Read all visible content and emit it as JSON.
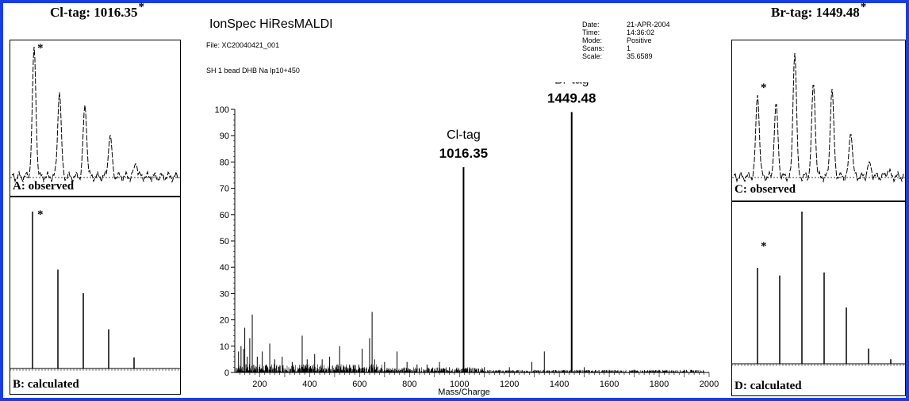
{
  "left": {
    "title": "Cl-tag: 1016.35",
    "star": "*",
    "observed_label": "A: observed",
    "calculated_label": "B: calculated"
  },
  "right": {
    "title": "Br-tag: 1449.48",
    "star": "*",
    "observed_label": "C: observed",
    "calculated_label": "D: calculated"
  },
  "center": {
    "instrument": "IonSpec HiResMALDI",
    "file": "File: XC20040421_001",
    "sample": "SH 1 bead DHB Na lp10+450",
    "meta": [
      {
        "key": "Date:",
        "value": "21-APR-2004"
      },
      {
        "key": "Time:",
        "value": "14:36:02"
      },
      {
        "key": "Mode:",
        "value": "Positive"
      },
      {
        "key": "Scans:",
        "value": "1"
      },
      {
        "key": "Scale:",
        "value": "35.6589"
      }
    ]
  },
  "chart_data": [
    {
      "type": "line",
      "name": "main-spectrum",
      "xlabel": "Mass/Charge",
      "ylabel": "",
      "xlim": [
        100,
        2000
      ],
      "ylim": [
        0,
        100
      ],
      "x_ticks": [
        "200",
        "400",
        "600",
        "800",
        "1000",
        "1200",
        "1400",
        "1600",
        "1800",
        "2000"
      ],
      "y_ticks": [
        "0",
        "10",
        "20",
        "30",
        "40",
        "50",
        "60",
        "70",
        "80",
        "90",
        "100"
      ],
      "peaks_x": [
        115,
        125,
        135,
        140,
        150,
        160,
        170,
        190,
        210,
        240,
        260,
        290,
        330,
        370,
        390,
        420,
        450,
        480,
        520,
        560,
        610,
        640,
        650,
        660,
        700,
        750,
        790,
        830,
        870,
        920,
        960,
        1016.35,
        1100,
        1200,
        1290,
        1340,
        1449.48,
        1500,
        1600,
        1700,
        1800,
        1900
      ],
      "peaks_y": [
        8,
        10,
        9,
        17,
        6,
        13,
        22,
        6,
        8,
        11,
        5,
        6,
        4,
        14,
        5,
        7,
        5,
        6,
        10,
        3,
        9,
        13,
        23,
        5,
        4,
        8,
        4,
        3,
        3,
        4,
        2,
        78,
        2,
        2,
        4,
        8,
        99,
        2,
        1,
        1,
        1,
        1
      ],
      "annotations": [
        {
          "label": "Cl-tag",
          "value": "1016.35",
          "x": 1016.35
        },
        {
          "label": "Br-tag",
          "value": "1449.48",
          "x": 1449.48
        }
      ]
    },
    {
      "type": "line",
      "name": "A: observed",
      "ylim": [
        0,
        100
      ],
      "peaks_y": [
        100,
        65,
        55,
        32,
        10
      ]
    },
    {
      "type": "bar",
      "name": "B: calculated",
      "ylim": [
        0,
        100
      ],
      "values": [
        100,
        63,
        48,
        25,
        7
      ]
    },
    {
      "type": "line",
      "name": "C: observed",
      "ylim": [
        0,
        100
      ],
      "peaks_y": [
        66,
        60,
        100,
        76,
        71,
        35,
        12,
        5
      ]
    },
    {
      "type": "bar",
      "name": "D: calculated",
      "ylim": [
        0,
        100
      ],
      "values": [
        63,
        58,
        100,
        60,
        37,
        10,
        3
      ]
    }
  ]
}
